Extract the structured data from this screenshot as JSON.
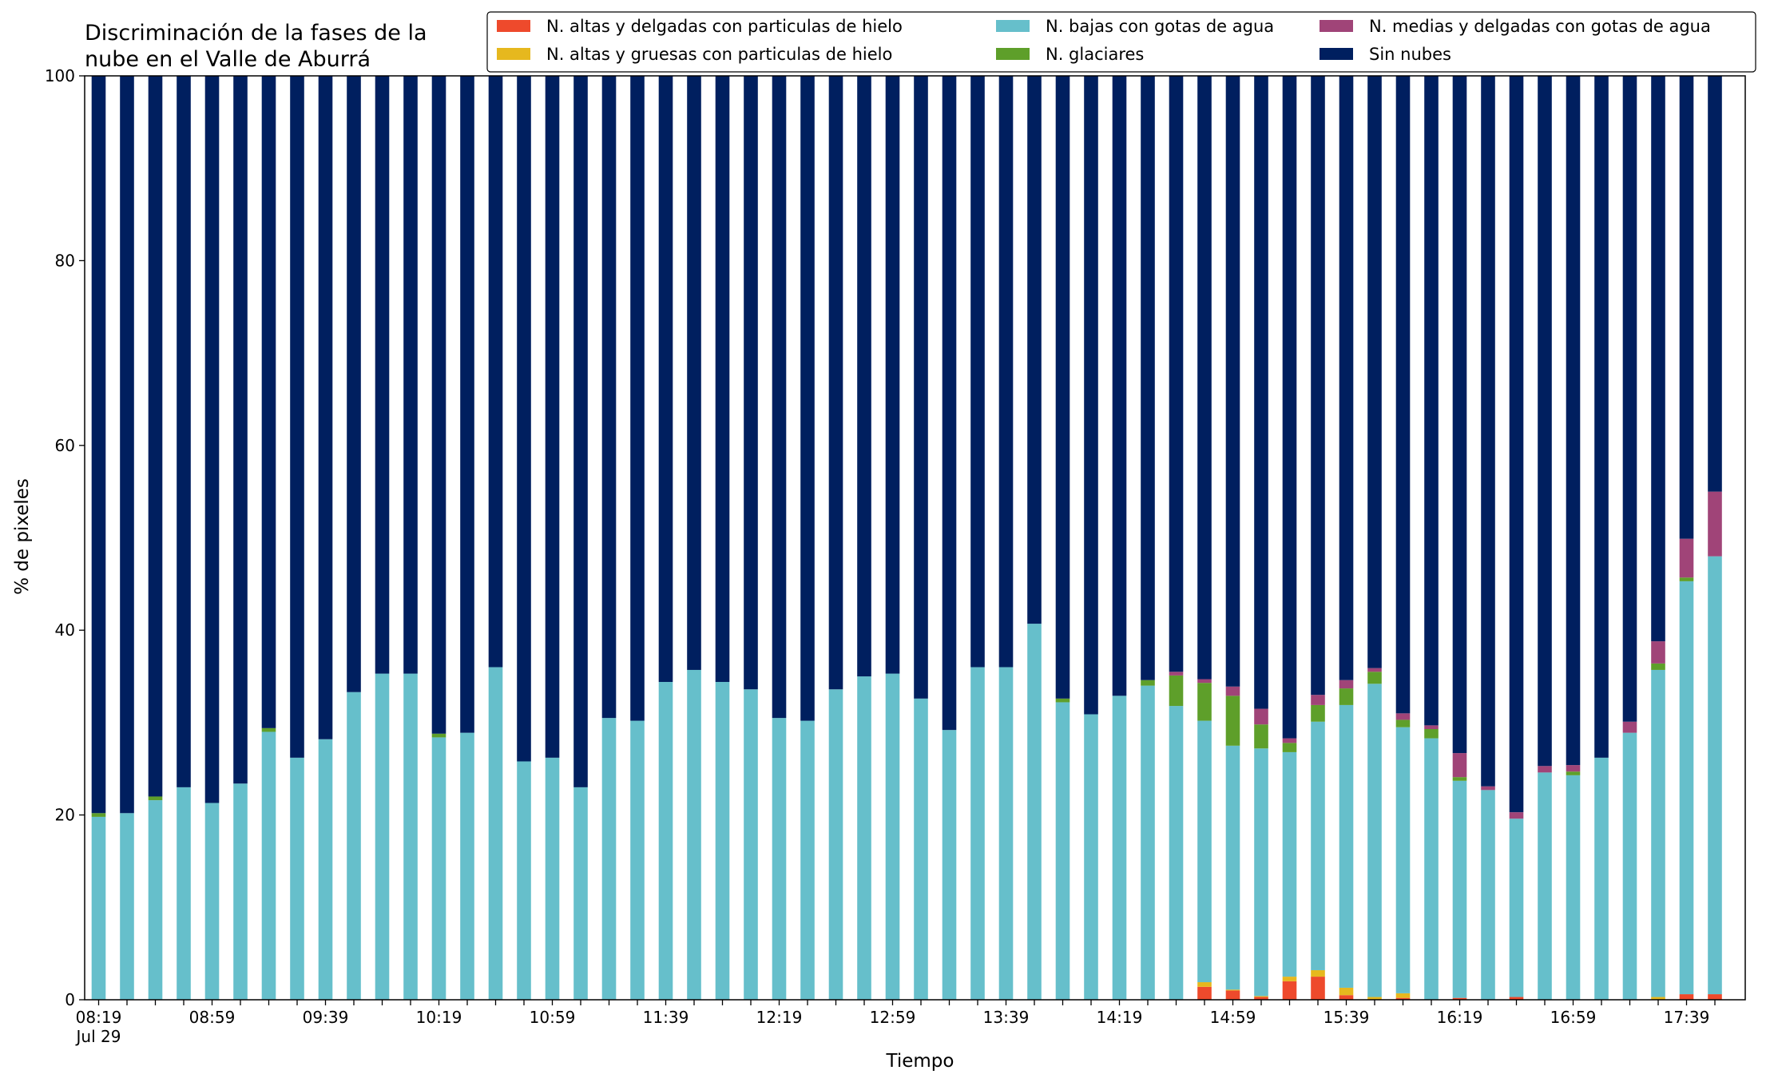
{
  "chart_data": {
    "type": "bar",
    "stacked": true,
    "title_lines": [
      "Discriminación de la fases de la",
      "nube en el Valle de Aburrá"
    ],
    "xlabel": "Tiempo",
    "ylabel": "% de pixeles",
    "ylim": [
      0,
      100
    ],
    "yticks": [
      "0",
      "20",
      "40",
      "60",
      "80",
      "100"
    ],
    "xtick_labels": [
      {
        "index": 0,
        "label": "08:19",
        "sublabel": "Jul 29"
      },
      {
        "index": 4,
        "label": "08:59"
      },
      {
        "index": 8,
        "label": "09:39"
      },
      {
        "index": 12,
        "label": "10:19"
      },
      {
        "index": 16,
        "label": "10:59"
      },
      {
        "index": 20,
        "label": "11:39"
      },
      {
        "index": 24,
        "label": "12:19"
      },
      {
        "index": 28,
        "label": "12:59"
      },
      {
        "index": 32,
        "label": "13:39"
      },
      {
        "index": 36,
        "label": "14:19"
      },
      {
        "index": 40,
        "label": "14:59"
      },
      {
        "index": 44,
        "label": "15:39"
      },
      {
        "index": 48,
        "label": "16:19"
      },
      {
        "index": 52,
        "label": "16:59"
      },
      {
        "index": 56,
        "label": "17:39"
      }
    ],
    "grid": false,
    "legend_position": "top-right",
    "series": [
      {
        "name": "N. altas y delgadas con particulas de hielo",
        "color": "#ee4a2c",
        "values": [
          0,
          0,
          0,
          0,
          0,
          0,
          0,
          0,
          0,
          0,
          0,
          0,
          0,
          0,
          0,
          0,
          0,
          0,
          0,
          0,
          0,
          0,
          0,
          0,
          0,
          0,
          0,
          0,
          0,
          0,
          0,
          0,
          0,
          0,
          0,
          0,
          0,
          0,
          0,
          1.4,
          1.0,
          0.3,
          2.0,
          2.5,
          0.5,
          0,
          0.2,
          0,
          0.2,
          0,
          0.3,
          0,
          0,
          0,
          0,
          0,
          0.6,
          0.6
        ]
      },
      {
        "name": "N. altas y gruesas con particulas de hielo",
        "color": "#e6b81e",
        "values": [
          0,
          0,
          0,
          0,
          0,
          0,
          0,
          0,
          0,
          0,
          0,
          0,
          0,
          0,
          0,
          0,
          0,
          0,
          0,
          0,
          0,
          0,
          0,
          0,
          0,
          0,
          0,
          0,
          0,
          0,
          0,
          0,
          0,
          0,
          0,
          0,
          0,
          0,
          0,
          0.5,
          0.1,
          0.1,
          0.5,
          0.7,
          0.8,
          0.3,
          0.5,
          0,
          0,
          0,
          0,
          0,
          0,
          0,
          0,
          0.3,
          0,
          0
        ]
      },
      {
        "name": "N. bajas con gotas de agua",
        "color": "#66bfcb",
        "values": [
          19.8,
          20.2,
          21.6,
          23.0,
          21.3,
          23.4,
          29.0,
          26.2,
          28.2,
          33.3,
          35.3,
          35.3,
          28.4,
          28.9,
          36.0,
          25.8,
          26.2,
          23.0,
          30.5,
          30.2,
          34.4,
          35.7,
          34.4,
          33.6,
          30.5,
          30.2,
          33.6,
          35.0,
          35.3,
          32.6,
          29.2,
          36.0,
          36.0,
          40.7,
          32.2,
          30.9,
          32.9,
          34.0,
          31.8,
          28.3,
          26.4,
          26.8,
          24.3,
          26.9,
          30.6,
          33.9,
          28.8,
          28.3,
          23.5,
          22.7,
          19.3,
          24.6,
          24.3,
          26.2,
          28.9,
          35.4,
          44.7,
          47.4
        ]
      },
      {
        "name": "N. glaciares",
        "color": "#5e9f2a",
        "values": [
          0.4,
          0,
          0.4,
          0,
          0,
          0,
          0.4,
          0,
          0,
          0,
          0,
          0,
          0.4,
          0,
          0,
          0,
          0,
          0,
          0,
          0,
          0,
          0,
          0,
          0,
          0,
          0,
          0,
          0,
          0,
          0,
          0,
          0,
          0,
          0,
          0.4,
          0,
          0,
          0.6,
          3.3,
          4.1,
          5.4,
          2.6,
          1.0,
          1.8,
          1.8,
          1.3,
          0.8,
          1.0,
          0.4,
          0,
          0,
          0,
          0.4,
          0,
          0,
          0.7,
          0.4,
          0
        ]
      },
      {
        "name": "N. medias y delgadas con gotas de agua",
        "color": "#a04478",
        "values": [
          0,
          0,
          0,
          0,
          0,
          0,
          0,
          0,
          0,
          0,
          0,
          0,
          0,
          0,
          0,
          0,
          0,
          0,
          0,
          0,
          0,
          0,
          0,
          0,
          0,
          0,
          0,
          0,
          0,
          0,
          0,
          0,
          0,
          0,
          0,
          0,
          0,
          0,
          0.4,
          0.4,
          1.0,
          1.7,
          0.5,
          1.1,
          0.9,
          0.4,
          0.7,
          0.4,
          2.6,
          0.4,
          0.7,
          0.7,
          0.7,
          0,
          1.2,
          2.4,
          4.2,
          7.0
        ]
      },
      {
        "name": "Sin nubes",
        "color": "#001f5f",
        "values": [
          79.8,
          79.8,
          78.0,
          77.0,
          78.7,
          76.6,
          70.6,
          73.8,
          71.8,
          66.7,
          64.7,
          64.7,
          71.2,
          71.1,
          64.0,
          74.2,
          73.8,
          77.0,
          69.5,
          69.8,
          65.6,
          64.3,
          65.6,
          66.4,
          69.5,
          69.8,
          66.4,
          65.0,
          64.7,
          67.4,
          70.8,
          64.0,
          64.0,
          59.3,
          67.4,
          69.1,
          67.1,
          65.4,
          64.5,
          65.3,
          66.1,
          68.5,
          71.7,
          67.0,
          65.4,
          64.1,
          69.0,
          70.3,
          73.3,
          76.9,
          79.7,
          74.7,
          74.6,
          73.8,
          69.9,
          61.2,
          50.1,
          45.0
        ]
      }
    ]
  }
}
